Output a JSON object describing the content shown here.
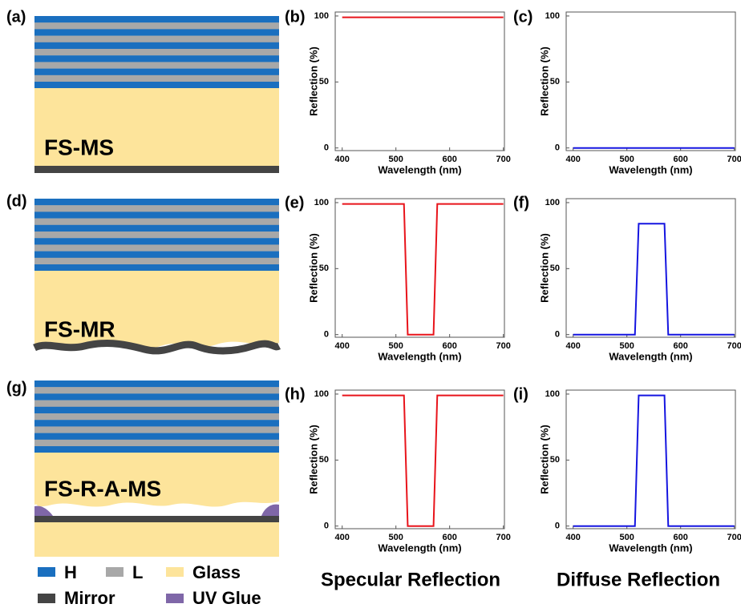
{
  "diagrams": [
    {
      "panel": "(a)",
      "label": "FS-MS"
    },
    {
      "panel": "(d)",
      "label": "FS-MR"
    },
    {
      "panel": "(g)",
      "label": "FS-R-A-MS"
    }
  ],
  "legend": [
    "H",
    "L",
    "Glass",
    "Mirror",
    "UV Glue"
  ],
  "column_titles": [
    "Specular Reflection",
    "Diffuse Reflection"
  ],
  "chart_data": [
    {
      "type": "line",
      "panel": "(b)",
      "xlabel": "Wavelength (nm)",
      "ylabel": "Reflection (%)",
      "x": [
        400,
        700
      ],
      "series": [
        {
          "color": "#e8141b",
          "values": [
            99,
            99
          ]
        }
      ],
      "xlim": [
        387,
        702
      ],
      "ylim": [
        -2,
        103
      ],
      "xticks": [
        400,
        500,
        600,
        700
      ],
      "yticks": [
        0,
        50,
        100
      ]
    },
    {
      "type": "line",
      "panel": "(c)",
      "xlabel": "Wavelength (nm)",
      "ylabel": "Reflection (%)",
      "x": [
        400,
        700
      ],
      "series": [
        {
          "color": "#1515e0",
          "values": [
            0,
            0
          ]
        }
      ],
      "xlim": [
        387,
        702
      ],
      "ylim": [
        -2,
        103
      ],
      "xticks": [
        400,
        500,
        600,
        700
      ],
      "yticks": [
        0,
        50,
        100
      ]
    },
    {
      "type": "line",
      "panel": "(e)",
      "xlabel": "Wavelength (nm)",
      "ylabel": "Reflection (%)",
      "x": [
        400,
        515,
        522,
        570,
        577,
        700
      ],
      "series": [
        {
          "color": "#e8141b",
          "values": [
            99,
            99,
            0,
            0,
            99,
            99
          ]
        }
      ],
      "xlim": [
        387,
        702
      ],
      "ylim": [
        -2,
        103
      ],
      "xticks": [
        400,
        500,
        600,
        700
      ],
      "yticks": [
        0,
        50,
        100
      ]
    },
    {
      "type": "line",
      "panel": "(f)",
      "xlabel": "Wavelength (nm)",
      "ylabel": "Reflection (%)",
      "x": [
        400,
        515,
        522,
        570,
        577,
        700
      ],
      "series": [
        {
          "color": "#1515e0",
          "values": [
            0,
            0,
            84,
            84,
            0,
            0
          ]
        }
      ],
      "xlim": [
        387,
        702
      ],
      "ylim": [
        -2,
        103
      ],
      "xticks": [
        400,
        500,
        600,
        700
      ],
      "yticks": [
        0,
        50,
        100
      ]
    },
    {
      "type": "line",
      "panel": "(h)",
      "xlabel": "Wavelength (nm)",
      "ylabel": "Reflection (%)",
      "x": [
        400,
        515,
        522,
        570,
        577,
        700
      ],
      "series": [
        {
          "color": "#e8141b",
          "values": [
            99,
            99,
            0,
            0,
            99,
            99
          ]
        }
      ],
      "xlim": [
        387,
        702
      ],
      "ylim": [
        -2,
        103
      ],
      "xticks": [
        400,
        500,
        600,
        700
      ],
      "yticks": [
        0,
        50,
        100
      ]
    },
    {
      "type": "line",
      "panel": "(i)",
      "xlabel": "Wavelength (nm)",
      "ylabel": "Reflection (%)",
      "x": [
        400,
        515,
        522,
        570,
        577,
        700
      ],
      "series": [
        {
          "color": "#1515e0",
          "values": [
            0,
            0,
            99,
            99,
            0,
            0
          ]
        }
      ],
      "xlim": [
        387,
        702
      ],
      "ylim": [
        -2,
        103
      ],
      "xticks": [
        400,
        500,
        600,
        700
      ],
      "yticks": [
        0,
        50,
        100
      ]
    }
  ]
}
